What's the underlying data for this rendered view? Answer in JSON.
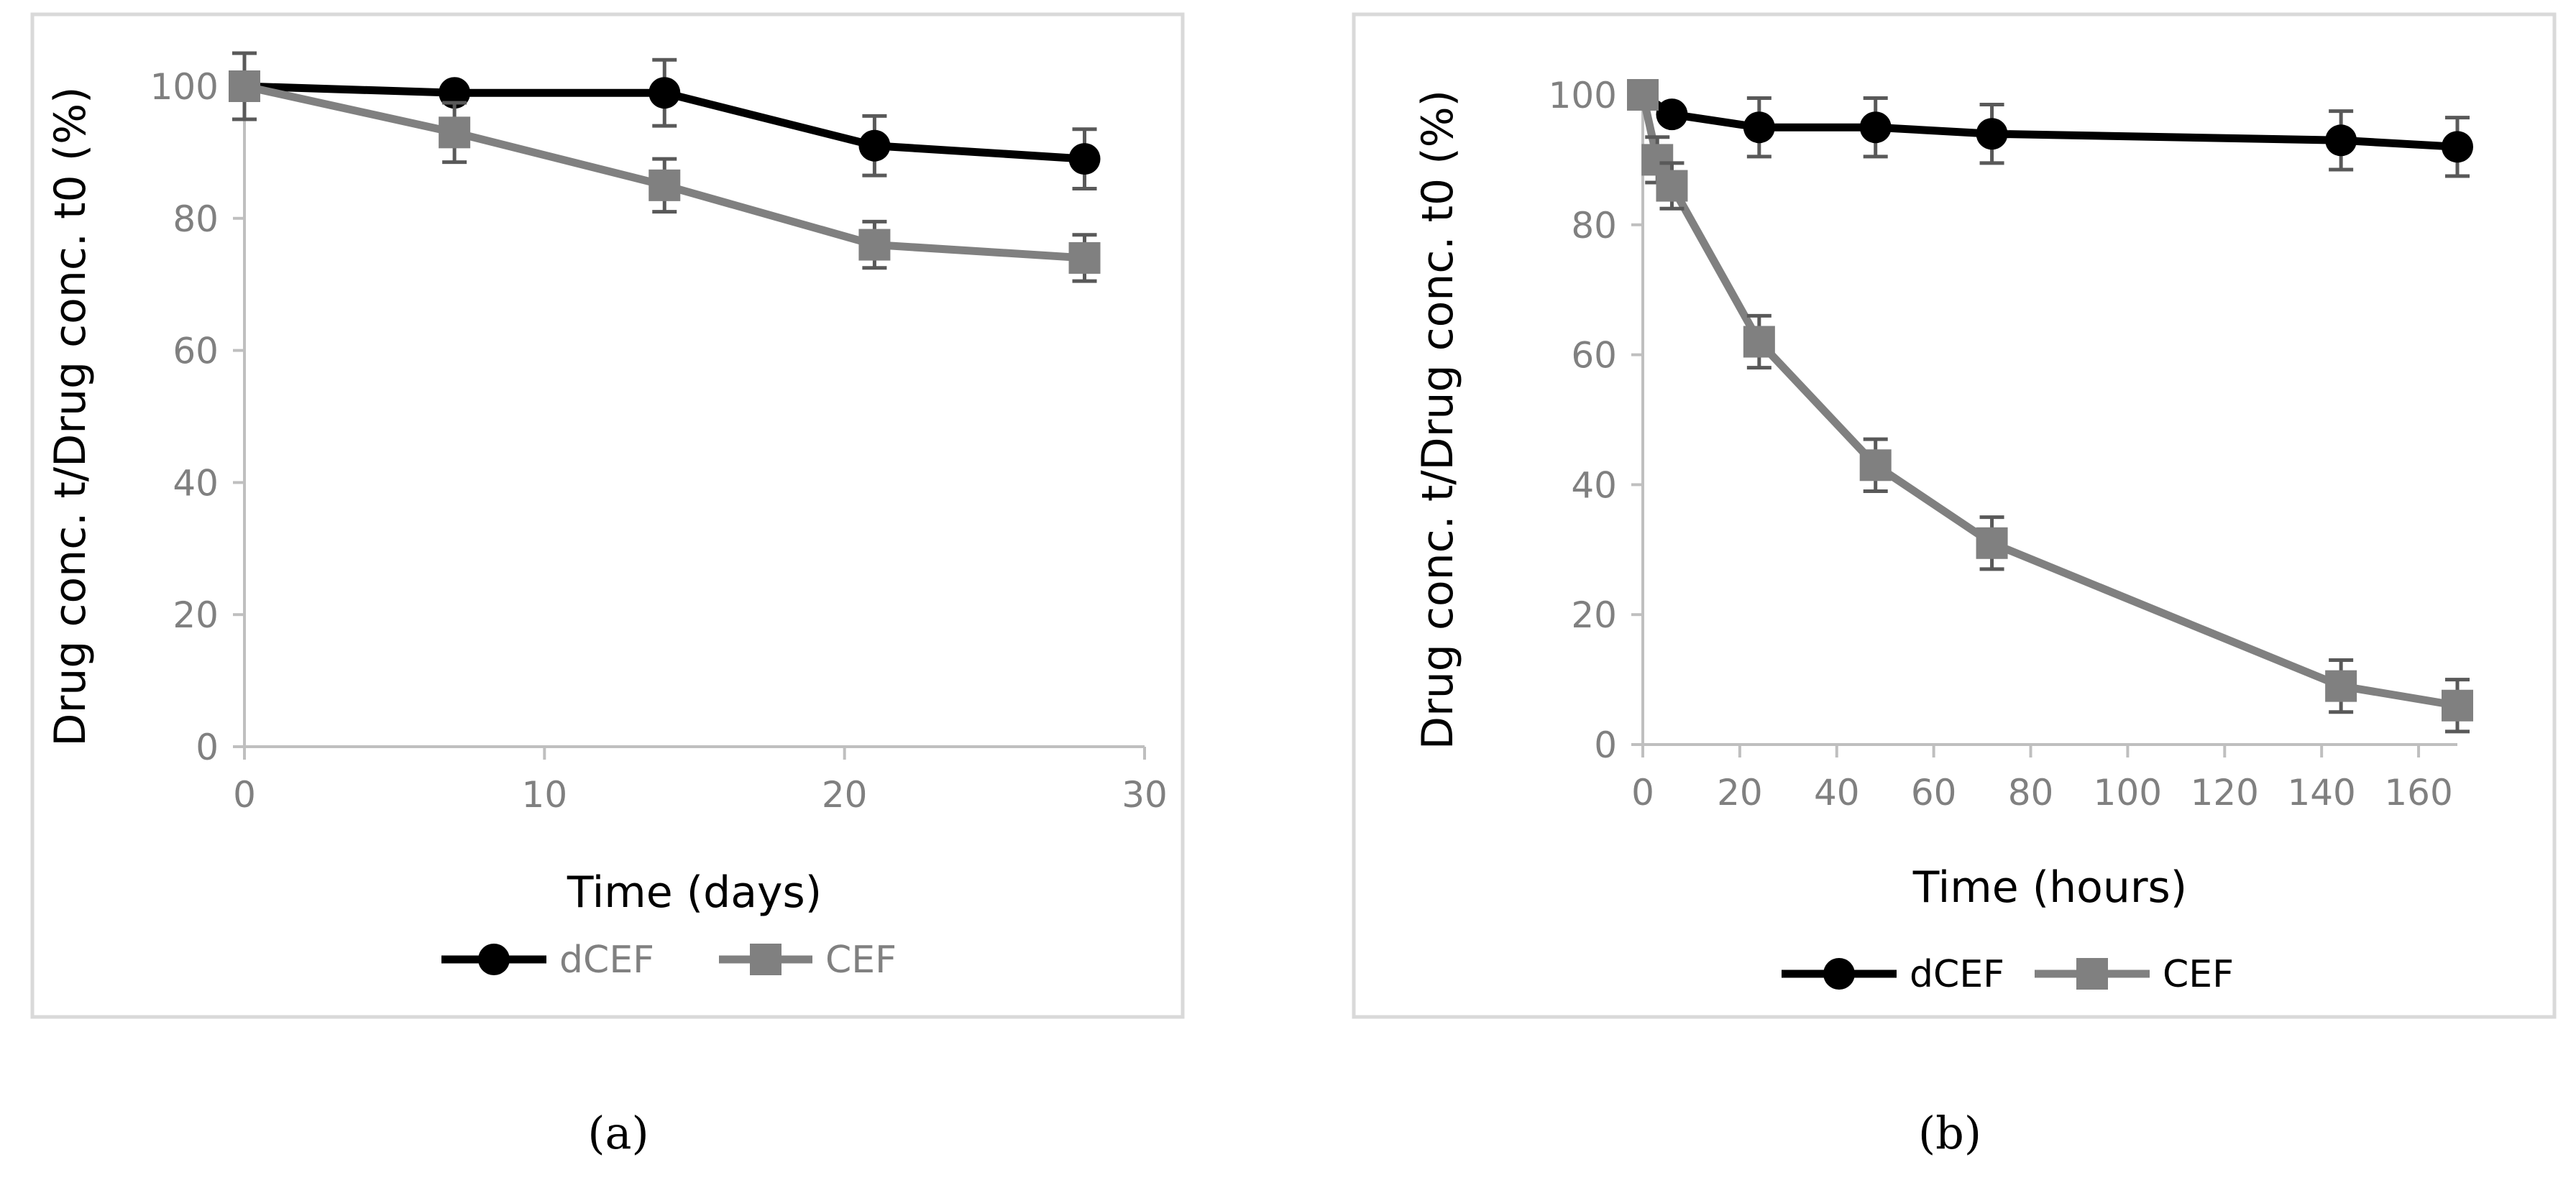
{
  "chart_data": [
    {
      "type": "line",
      "xlabel": "Time (days)",
      "ylabel": "Drug conc. t/Drug conc. t0 (%)",
      "xlim": [
        0,
        30
      ],
      "ylim": [
        0,
        100
      ],
      "xticks": [
        "0",
        "10",
        "20",
        "30"
      ],
      "yticks": [
        "0",
        "20",
        "40",
        "60",
        "80",
        "100"
      ],
      "grid": false,
      "legend_position": "bottom",
      "caption": "(a)",
      "series": [
        {
          "name": "dCEF",
          "color": "#000000",
          "marker": "circle",
          "x": [
            0,
            7,
            14,
            21,
            28
          ],
          "y": [
            100,
            99,
            99,
            91,
            89
          ],
          "error": [
            0,
            0,
            5,
            4.5,
            4.5
          ]
        },
        {
          "name": "CEF",
          "color": "#808080",
          "marker": "square",
          "x": [
            0,
            7,
            14,
            21,
            28
          ],
          "y": [
            100,
            93,
            85,
            76,
            74
          ],
          "error": [
            5,
            4.5,
            4,
            3.5,
            3.5
          ]
        }
      ]
    },
    {
      "type": "line",
      "xlabel": "Time (hours)",
      "ylabel": "Drug conc. t/Drug conc. t0 (%)",
      "xlim": [
        0,
        168
      ],
      "ylim": [
        0,
        100
      ],
      "xticks": [
        "0",
        "20",
        "40",
        "60",
        "80",
        "100",
        "120",
        "140",
        "160"
      ],
      "yticks": [
        "0",
        "20",
        "40",
        "60",
        "80",
        "100"
      ],
      "grid": false,
      "legend_position": "bottom",
      "caption": "(b)",
      "series": [
        {
          "name": "dCEF",
          "color": "#000000",
          "marker": "circle",
          "x": [
            0,
            6,
            24,
            48,
            72,
            144,
            168
          ],
          "y": [
            100,
            97,
            95,
            95,
            94,
            93,
            92
          ],
          "error": [
            0,
            0,
            4.5,
            4.5,
            4.5,
            4.5,
            4.5
          ]
        },
        {
          "name": "CEF",
          "color": "#808080",
          "marker": "square",
          "x": [
            0,
            3,
            6,
            24,
            48,
            72,
            144,
            168
          ],
          "y": [
            100,
            90,
            86,
            62,
            43,
            31,
            9,
            6
          ],
          "error": [
            0,
            3.5,
            3.5,
            4,
            4,
            4,
            4,
            4
          ]
        }
      ]
    }
  ]
}
